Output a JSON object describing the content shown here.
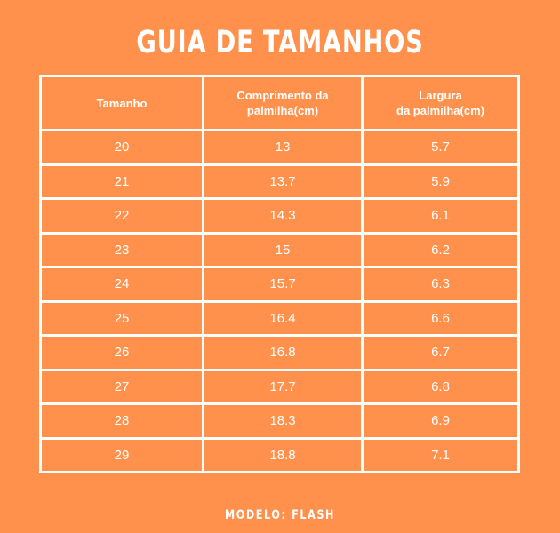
{
  "title": "GUIA DE TAMANHOS",
  "headers": [
    {
      "lines": [
        "Tamanho"
      ]
    },
    {
      "lines": [
        "Comprimento da",
        "palmilha(cm)"
      ]
    },
    {
      "lines": [
        "Largura",
        "da palmilha(cm)"
      ]
    }
  ],
  "rows": [
    [
      "20",
      "13",
      "5.7"
    ],
    [
      "21",
      "13.7",
      "5.9"
    ],
    [
      "22",
      "14.3",
      "6.1"
    ],
    [
      "23",
      "15",
      "6.2"
    ],
    [
      "24",
      "15.7",
      "6.3"
    ],
    [
      "25",
      "16.4",
      "6.6"
    ],
    [
      "26",
      "16.8",
      "6.7"
    ],
    [
      "27",
      "17.7",
      "6.8"
    ],
    [
      "28",
      "18.3",
      "6.9"
    ],
    [
      "29",
      "18.8",
      "7.1"
    ]
  ],
  "footer": "MODELO: FLASH",
  "colors": {
    "background": "#FF914D",
    "lines": "#FFFFFF"
  }
}
